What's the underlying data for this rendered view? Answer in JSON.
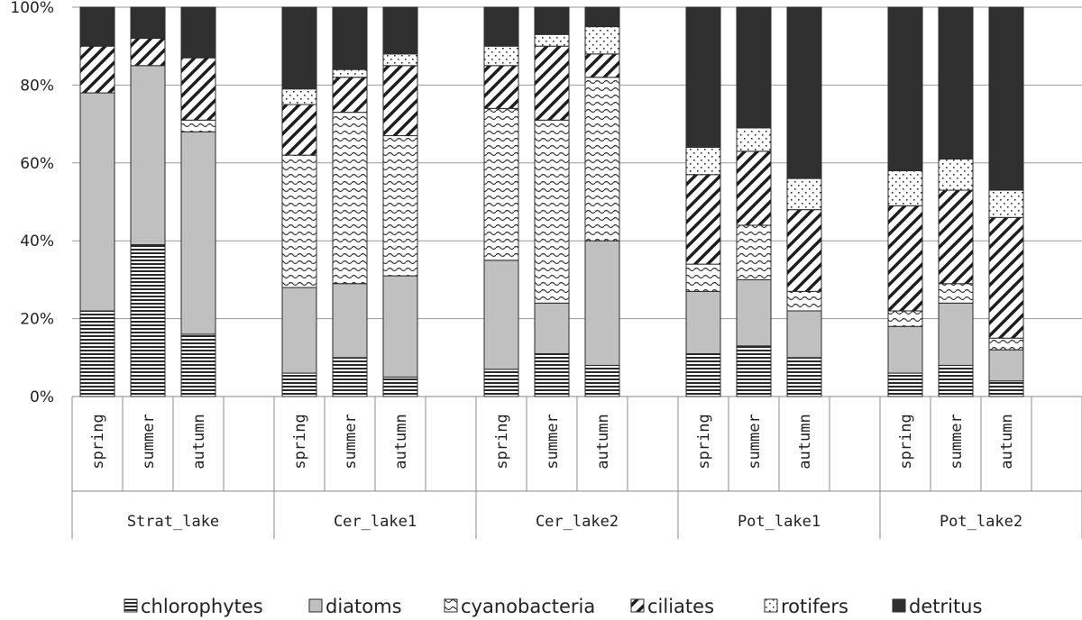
{
  "chart_data": {
    "type": "stacked-bar-100",
    "title": "",
    "ylabel": "",
    "xlabel": "",
    "ylim": [
      0,
      100
    ],
    "y_ticks": [
      "0%",
      "20%",
      "40%",
      "60%",
      "80%",
      "100%"
    ],
    "legend_position": "bottom",
    "groups": [
      {
        "name": "Strat_lake",
        "categories": [
          "spring",
          "summer",
          "autumn"
        ]
      },
      {
        "name": "Cer_lake1",
        "categories": [
          "spring",
          "summer",
          "autumn"
        ]
      },
      {
        "name": "Cer_lake2",
        "categories": [
          "spring",
          "summer",
          "autumn"
        ]
      },
      {
        "name": "Pot_lake1",
        "categories": [
          "spring",
          "summer",
          "autumn"
        ]
      },
      {
        "name": "Pot_lake2",
        "categories": [
          "spring",
          "summer",
          "autumn"
        ]
      }
    ],
    "series": [
      {
        "name": "chlorophytes",
        "pattern": "hlines",
        "values": [
          22,
          39,
          16,
          6,
          10,
          5,
          7,
          11,
          8,
          11,
          13,
          10,
          6,
          8,
          4
        ]
      },
      {
        "name": "diatoms",
        "pattern": "gray",
        "values": [
          56,
          46,
          52,
          22,
          19,
          26,
          28,
          13,
          32,
          16,
          17,
          12,
          12,
          16,
          8
        ]
      },
      {
        "name": "cyanobacteria",
        "pattern": "waves",
        "values": [
          0,
          0,
          3,
          34,
          44,
          36,
          39,
          47,
          42,
          7,
          14,
          5,
          4,
          5,
          3
        ]
      },
      {
        "name": "ciliates",
        "pattern": "diag",
        "values": [
          12,
          7,
          16,
          13,
          9,
          18,
          11,
          19,
          6,
          23,
          19,
          21,
          27,
          24,
          31
        ]
      },
      {
        "name": "rotifers",
        "pattern": "dots",
        "values": [
          0,
          0,
          0,
          4,
          2,
          3,
          5,
          3,
          7,
          7,
          6,
          8,
          9,
          8,
          7
        ]
      },
      {
        "name": "detritus",
        "pattern": "dark",
        "values": [
          10,
          8,
          13,
          21,
          16,
          12,
          10,
          7,
          5,
          36,
          31,
          44,
          42,
          39,
          47
        ]
      }
    ]
  }
}
